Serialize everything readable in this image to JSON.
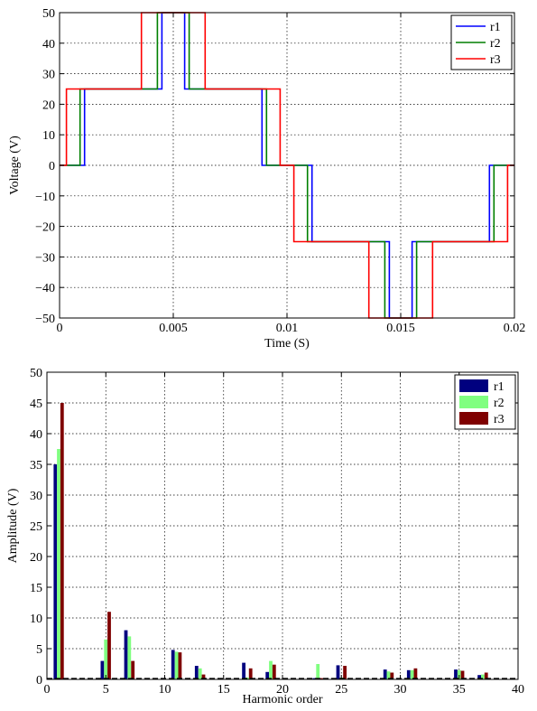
{
  "chart_data": [
    {
      "type": "line",
      "xlabel": "Time (S)",
      "ylabel": "Voltage (V)",
      "xlim": [
        0,
        0.02
      ],
      "ylim": [
        -50,
        50
      ],
      "xticks": [
        0,
        0.005,
        0.01,
        0.015,
        0.02
      ],
      "xtick_labels": [
        "0",
        "0.005",
        "0.01",
        "0.015",
        "0.02"
      ],
      "yticks": [
        -50,
        -40,
        -30,
        -20,
        -10,
        0,
        10,
        20,
        30,
        40,
        50
      ],
      "ytick_labels": [
        "−50",
        "−40",
        "−30",
        "−20",
        "−10",
        "0",
        "10",
        "20",
        "30",
        "40",
        "50"
      ],
      "grid": true,
      "legend_position": "top-right",
      "series": [
        {
          "name": "r1",
          "color": "#0000ff",
          "x": [
            0,
            0.0011,
            0.0011,
            0.0045,
            0.0045,
            0.0055,
            0.0055,
            0.0089,
            0.0089,
            0.0111,
            0.0111,
            0.0145,
            0.0145,
            0.0155,
            0.0155,
            0.0189,
            0.0189,
            0.02
          ],
          "y": [
            0,
            0,
            25,
            25,
            50,
            50,
            25,
            25,
            0,
            0,
            -25,
            -25,
            -50,
            -50,
            -25,
            -25,
            0,
            0
          ]
        },
        {
          "name": "r2",
          "color": "#007f00",
          "x": [
            0,
            0.0009,
            0.0009,
            0.0043,
            0.0043,
            0.0057,
            0.0057,
            0.0091,
            0.0091,
            0.0109,
            0.0109,
            0.0143,
            0.0143,
            0.0157,
            0.0157,
            0.0191,
            0.0191,
            0.02
          ],
          "y": [
            0,
            0,
            25,
            25,
            50,
            50,
            25,
            25,
            0,
            0,
            -25,
            -25,
            -50,
            -50,
            -25,
            -25,
            0,
            0
          ]
        },
        {
          "name": "r3",
          "color": "#ff0000",
          "x": [
            0,
            0.0003,
            0.0003,
            0.0036,
            0.0036,
            0.0064,
            0.0064,
            0.0097,
            0.0097,
            0.0103,
            0.0103,
            0.0136,
            0.0136,
            0.0164,
            0.0164,
            0.0197,
            0.0197,
            0.02
          ],
          "y": [
            0,
            0,
            25,
            25,
            50,
            50,
            25,
            25,
            0,
            0,
            -25,
            -25,
            -50,
            -50,
            -25,
            -25,
            0,
            0
          ]
        }
      ]
    },
    {
      "type": "bar",
      "xlabel": "Harmonic order",
      "ylabel": "Amplitude (V)",
      "xlim": [
        0,
        40
      ],
      "ylim": [
        0,
        50
      ],
      "xticks": [
        0,
        5,
        10,
        15,
        20,
        25,
        30,
        35,
        40
      ],
      "xtick_labels": [
        "0",
        "5",
        "10",
        "15",
        "20",
        "25",
        "30",
        "35",
        "40"
      ],
      "yticks": [
        0,
        5,
        10,
        15,
        20,
        25,
        30,
        35,
        40,
        45,
        50
      ],
      "ytick_labels": [
        "0",
        "5",
        "10",
        "15",
        "20",
        "25",
        "30",
        "35",
        "40",
        "45",
        "50"
      ],
      "grid": true,
      "legend_position": "top-right",
      "categories": [
        1,
        5,
        7,
        11,
        13,
        17,
        19,
        23,
        25,
        29,
        31,
        35,
        37
      ],
      "series": [
        {
          "name": "r1",
          "color": "#00007f",
          "values": [
            35,
            3,
            8,
            4.8,
            2.2,
            2.7,
            1.2,
            0.2,
            2.3,
            1.6,
            1.5,
            1.6,
            0.7
          ]
        },
        {
          "name": "r2",
          "color": "#80ff80",
          "values": [
            37.5,
            6.5,
            7,
            4.5,
            1.8,
            0.3,
            3,
            2.5,
            0.3,
            1.3,
            1.5,
            1.5,
            0.8
          ]
        },
        {
          "name": "r3",
          "color": "#7f0000",
          "values": [
            45,
            11,
            3,
            4.4,
            0.8,
            1.8,
            2.4,
            0.2,
            2.2,
            1.1,
            1.8,
            1.4,
            1.1
          ]
        }
      ]
    }
  ]
}
